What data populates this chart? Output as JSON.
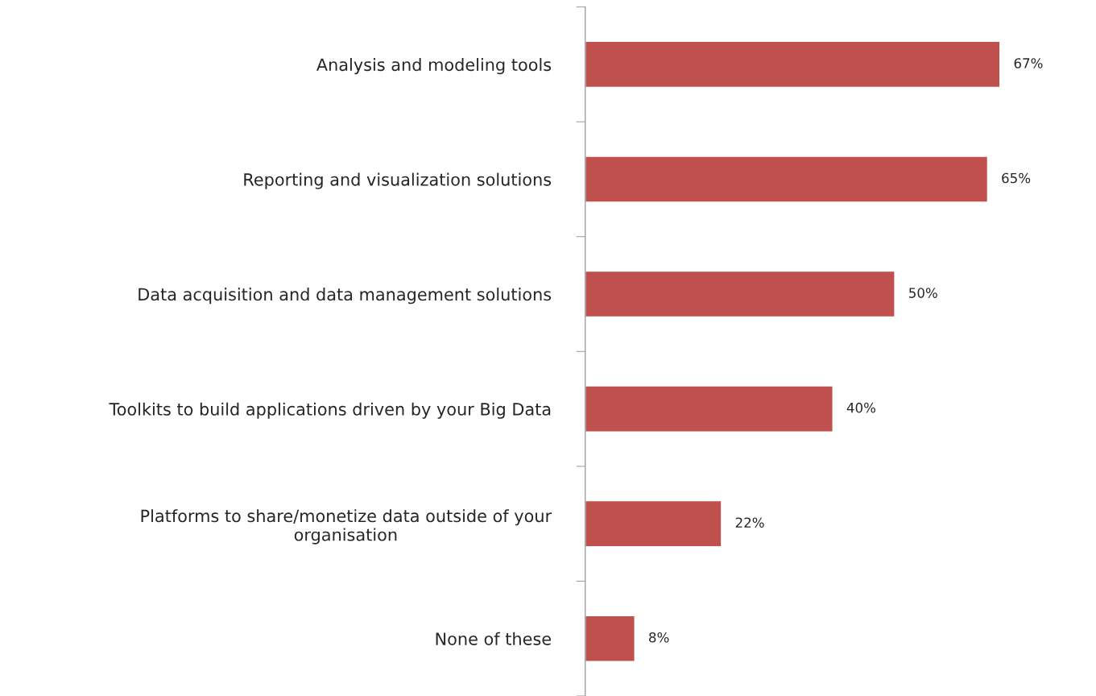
{
  "chart_data": {
    "type": "bar",
    "orientation": "horizontal",
    "categories": [
      "Analysis and modeling tools",
      "Reporting and visualization solutions",
      "Data acquisition and data management solutions",
      "Toolkits to build applications driven by your Big Data",
      "Platforms to share/monetize data outside of your\norganisation",
      "None of these"
    ],
    "values": [
      67,
      65,
      50,
      40,
      22,
      8
    ],
    "value_labels": [
      "67%",
      "65%",
      "50%",
      "40%",
      "22%",
      "8%"
    ],
    "color": "#c0504d",
    "grid": false,
    "legend": false,
    "tick_labels": "y"
  }
}
